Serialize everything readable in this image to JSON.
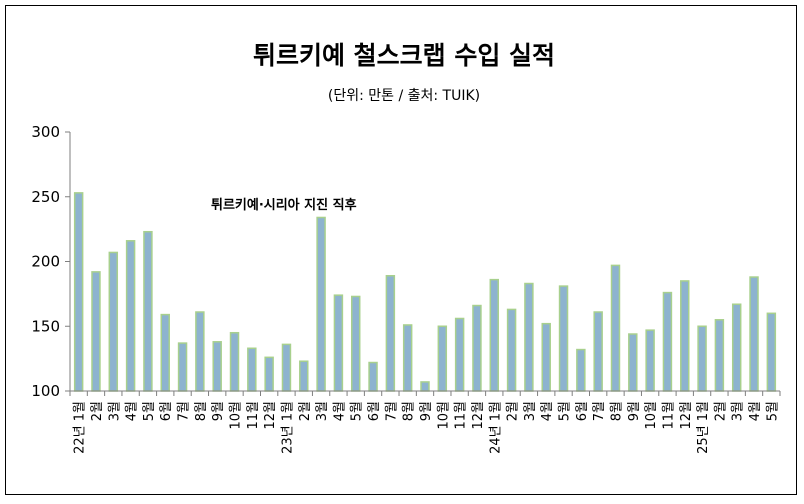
{
  "chart_data": {
    "type": "bar",
    "title": "튀르키예 철스크랩 수입 실적",
    "subtitle": "(단위: 만톤 / 출처: TUIK)",
    "annotation": {
      "text": "튀르키예·시리아 지진 직후",
      "category_index": 13
    },
    "ylim": [
      100,
      300
    ],
    "yticks": [
      100,
      150,
      200,
      250,
      300
    ],
    "categories": [
      "22년 1월",
      "2월",
      "3월",
      "4월",
      "5월",
      "6월",
      "7월",
      "8월",
      "9월",
      "10월",
      "11월",
      "12월",
      "23년 1월",
      "2월",
      "3월",
      "4월",
      "5월",
      "6월",
      "7월",
      "8월",
      "9월",
      "10월",
      "11월",
      "12월",
      "24년 1월",
      "2월",
      "3월",
      "4월",
      "5월",
      "6월",
      "7월",
      "8월",
      "9월",
      "10월",
      "11월",
      "12월",
      "25년 1월",
      "2월",
      "3월",
      "4월",
      "5월"
    ],
    "values": [
      253,
      192,
      207,
      216,
      223,
      159,
      137,
      161,
      138,
      145,
      133,
      126,
      136,
      123,
      234,
      174,
      173,
      122,
      189,
      151,
      107,
      150,
      156,
      166,
      186,
      163,
      183,
      152,
      181,
      132,
      161,
      197,
      144,
      147,
      176,
      185,
      150,
      155,
      167,
      188,
      160
    ],
    "grid": false,
    "bar_fill": "#8DB3CF",
    "bar_edge": "#A8D08D"
  }
}
